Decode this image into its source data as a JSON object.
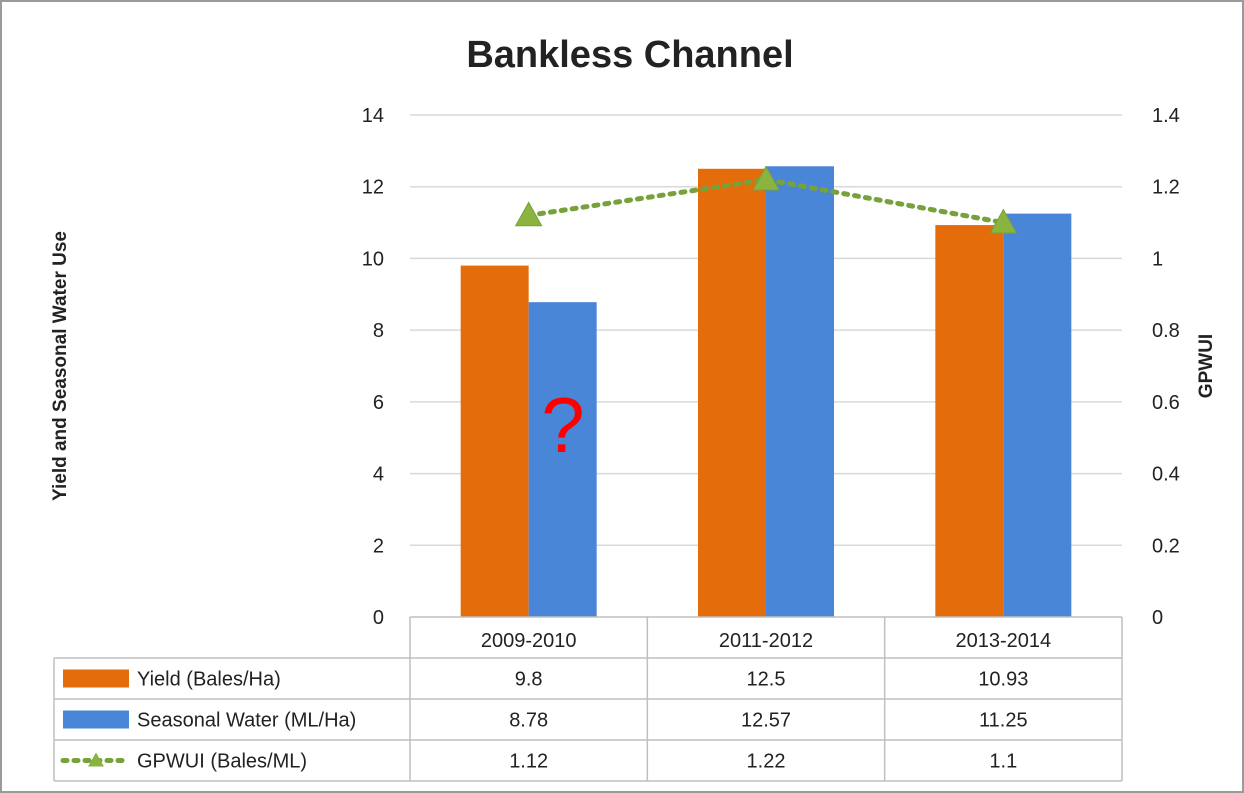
{
  "chart_data": {
    "type": "bar",
    "title": "Bankless Channel",
    "categories": [
      "2009-2010",
      "2011-2012",
      "2013-2014"
    ],
    "series": [
      {
        "name": "Yield (Bales/Ha)",
        "type": "bar",
        "axis": "left",
        "color": "#e46c0a",
        "values": [
          9.8,
          12.5,
          10.93
        ]
      },
      {
        "name": "Seasonal Water (ML/Ha)",
        "type": "bar",
        "axis": "left",
        "color": "#4a86d8",
        "values": [
          8.78,
          12.57,
          11.25
        ]
      },
      {
        "name": "GPWUI (Bales/ML)",
        "type": "line",
        "axis": "right",
        "style": "dotted-with-triangle-markers",
        "color": "#77a23b",
        "values": [
          1.12,
          1.22,
          1.1
        ]
      }
    ],
    "table_values": [
      [
        "9.8",
        "12.5",
        "10.93"
      ],
      [
        "8.78",
        "12.57",
        "11.25"
      ],
      [
        "1.12",
        "1.22",
        "1.1"
      ]
    ],
    "ylabel": "Yield and Seasonal Water Use",
    "ylabel_right": "GPWUI",
    "ylim": [
      0,
      14
    ],
    "ylim_right": [
      0,
      1.4
    ],
    "yticks": [
      "0",
      "2",
      "4",
      "6",
      "8",
      "10",
      "12",
      "14"
    ],
    "yticks_right": [
      "0",
      "0.2",
      "0.4",
      "0.6",
      "0.8",
      "1",
      "1.2",
      "1.4"
    ],
    "grid": true,
    "data_table": true,
    "annotation": {
      "text": "?",
      "color": "#ff0000"
    }
  }
}
